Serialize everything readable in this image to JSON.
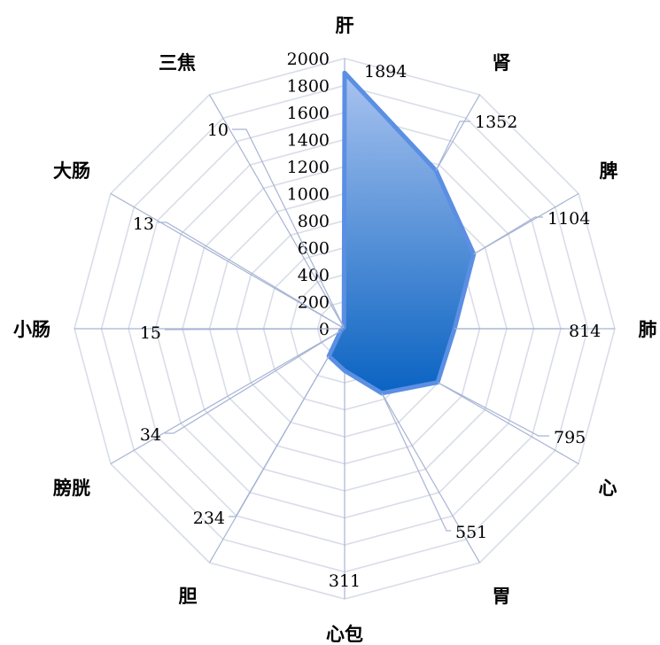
{
  "chart_data": {
    "type": "radar",
    "title": "",
    "categories": [
      "肝",
      "肾",
      "脾",
      "肺",
      "心",
      "胃",
      "心包",
      "胆",
      "膀胱",
      "小肠",
      "大肠",
      "三焦"
    ],
    "values": [
      1894,
      1352,
      1104,
      814,
      795,
      551,
      311,
      234,
      34,
      15,
      13,
      10
    ],
    "data_labels": [
      "1894",
      "1352",
      "1104",
      "814",
      "795",
      "551",
      "311",
      "234",
      "34",
      "15",
      "13",
      "10"
    ],
    "rlim": [
      0,
      2000
    ],
    "ticks": [
      0,
      200,
      400,
      600,
      800,
      1000,
      1200,
      1400,
      1600,
      1800,
      2000
    ],
    "tick_labels": [
      "0",
      "200",
      "400",
      "600",
      "800",
      "1000",
      "1200",
      "1400",
      "1600",
      "1800",
      "2000"
    ],
    "grid": true,
    "colors": {
      "fill_top": "#a9c3ef",
      "fill_bottom": "#0a63c2",
      "outline": "#5b8fe3",
      "grid": "#d9dde8",
      "spoke": "#a7b4d4"
    }
  }
}
